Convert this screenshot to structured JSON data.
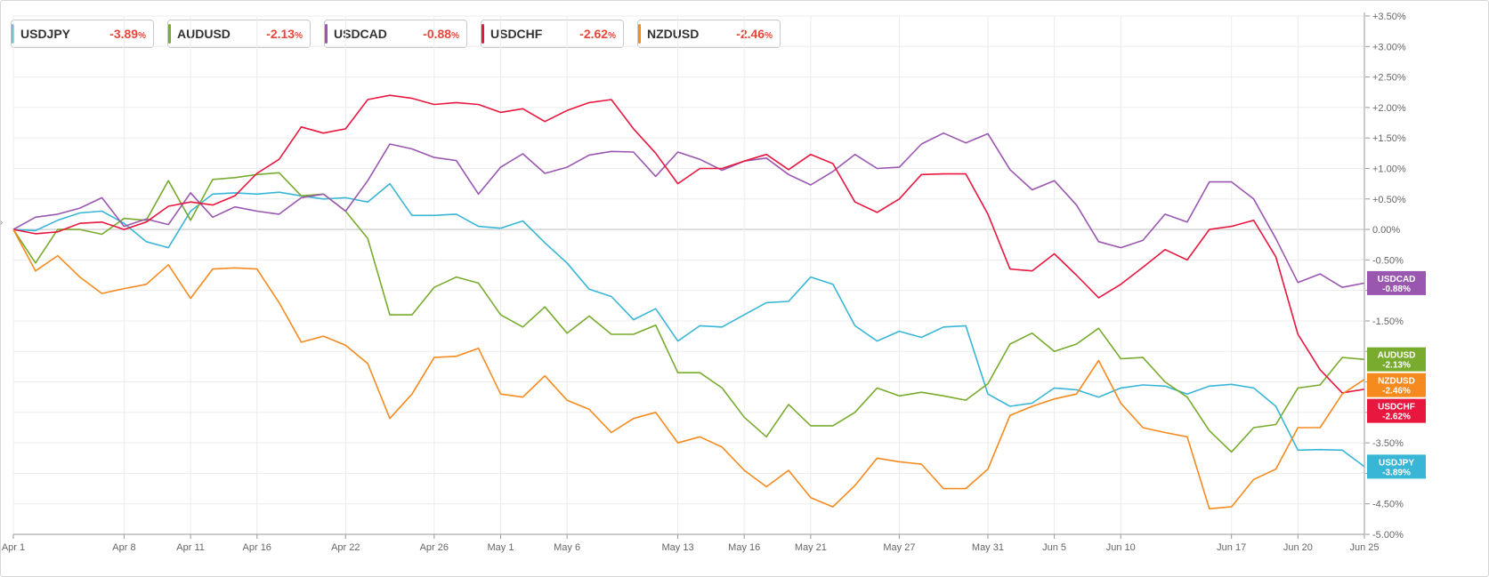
{
  "chart_data": {
    "type": "line",
    "x": [
      "Apr 1",
      "Apr 2",
      "Apr 3",
      "Apr 4",
      "Apr 5",
      "Apr 8",
      "Apr 9",
      "Apr 10",
      "Apr 11",
      "Apr 12",
      "Apr 15",
      "Apr 16",
      "Apr 17",
      "Apr 18",
      "Apr 19",
      "Apr 22",
      "Apr 23",
      "Apr 24",
      "Apr 25",
      "Apr 26",
      "Apr 29",
      "Apr 30",
      "May 1",
      "May 2",
      "May 3",
      "May 6",
      "May 7",
      "May 8",
      "May 9",
      "May 10",
      "May 13",
      "May 14",
      "May 15",
      "May 16",
      "May 17",
      "May 20",
      "May 21",
      "May 22",
      "May 23",
      "May 24",
      "May 27",
      "May 28",
      "May 29",
      "May 30",
      "May 31",
      "Jun 3",
      "Jun 4",
      "Jun 5",
      "Jun 6",
      "Jun 7",
      "Jun 10",
      "Jun 11",
      "Jun 12",
      "Jun 13",
      "Jun 14",
      "Jun 17",
      "Jun 18",
      "Jun 19",
      "Jun 20",
      "Jun 21",
      "Jun 24",
      "Jun 25"
    ],
    "x_tick_labels": [
      "Apr 1",
      "Apr 8",
      "Apr 11",
      "Apr 16",
      "Apr 22",
      "Apr 26",
      "May 1",
      "May 6",
      "May 13",
      "May 16",
      "May 21",
      "May 27",
      "May 31",
      "Jun 5",
      "Jun 10",
      "Jun 17",
      "Jun 20",
      "Jun 25"
    ],
    "x_tick_positions": [
      0,
      5,
      8,
      11,
      15,
      19,
      22,
      25,
      30,
      33,
      36,
      40,
      44,
      47,
      50,
      55,
      58,
      61
    ],
    "y_ticks": [
      "+3.50%",
      "+3.00%",
      "+2.50%",
      "+2.00%",
      "+1.50%",
      "+1.00%",
      "+0.50%",
      "0.00%",
      "-0.50%",
      "-1.00%",
      "-1.50%",
      "-2.00%",
      "-2.50%",
      "-3.00%",
      "-3.50%",
      "-4.00%",
      "-4.50%",
      "-5.00%"
    ],
    "ylim": [
      -5.0,
      3.5
    ],
    "y_unit": "%",
    "grid": true,
    "legend_position": "top-left",
    "series": [
      {
        "name": "USDJPY",
        "change": "-3.89",
        "color": "#39b6d6",
        "end_label": [
          "USDJPY",
          "-3.89%"
        ],
        "values": [
          0.0,
          -0.02,
          0.15,
          0.27,
          0.3,
          0.1,
          -0.2,
          -0.3,
          0.3,
          0.58,
          0.6,
          0.58,
          0.61,
          0.55,
          0.5,
          0.52,
          0.45,
          0.75,
          0.23,
          0.23,
          0.25,
          0.05,
          0.02,
          0.14,
          -0.22,
          -0.55,
          -0.98,
          -1.1,
          -1.48,
          -1.3,
          -1.83,
          -1.58,
          -1.6,
          -1.4,
          -1.2,
          -1.18,
          -0.78,
          -0.9,
          -1.58,
          -1.83,
          -1.67,
          -1.77,
          -1.6,
          -1.58,
          -2.7,
          -2.9,
          -2.85,
          -2.6,
          -2.63,
          -2.75,
          -2.6,
          -2.55,
          -2.57,
          -2.7,
          -2.57,
          -2.54,
          -2.6,
          -2.9,
          -3.62,
          -3.61,
          -3.62,
          -3.89
        ]
      },
      {
        "name": "AUDUSD",
        "change": "-2.13",
        "color": "#78ab2e",
        "end_label": [
          "AUDUSD",
          "-2.13%"
        ],
        "values": [
          0.0,
          -0.55,
          0.0,
          0.0,
          -0.08,
          0.18,
          0.15,
          0.8,
          0.15,
          0.82,
          0.85,
          0.9,
          0.93,
          0.55,
          0.58,
          0.3,
          -0.15,
          -1.4,
          -1.4,
          -0.95,
          -0.78,
          -0.88,
          -1.4,
          -1.6,
          -1.27,
          -1.7,
          -1.42,
          -1.72,
          -1.72,
          -1.57,
          -2.35,
          -2.35,
          -2.6,
          -3.08,
          -3.4,
          -2.87,
          -3.22,
          -3.22,
          -3.0,
          -2.6,
          -2.73,
          -2.67,
          -2.73,
          -2.8,
          -2.53,
          -1.88,
          -1.7,
          -2.0,
          -1.88,
          -1.62,
          -2.12,
          -2.1,
          -2.5,
          -2.75,
          -3.3,
          -3.65,
          -3.25,
          -3.2,
          -2.6,
          -2.55,
          -2.1,
          -2.13
        ]
      },
      {
        "name": "USDCAD",
        "change": "-0.88",
        "color": "#9a57b0",
        "end_label": [
          "USDCAD",
          "-0.88%"
        ],
        "values": [
          0.0,
          0.2,
          0.25,
          0.35,
          0.52,
          0.05,
          0.17,
          0.08,
          0.6,
          0.2,
          0.37,
          0.3,
          0.25,
          0.52,
          0.58,
          0.3,
          0.8,
          1.4,
          1.32,
          1.18,
          1.13,
          0.58,
          1.02,
          1.24,
          0.92,
          1.02,
          1.22,
          1.28,
          1.27,
          0.87,
          1.27,
          1.15,
          0.97,
          1.12,
          1.17,
          0.9,
          0.73,
          0.95,
          1.23,
          1.0,
          1.02,
          1.4,
          1.58,
          1.42,
          1.57,
          0.98,
          0.65,
          0.8,
          0.4,
          -0.2,
          -0.3,
          -0.18,
          0.25,
          0.12,
          0.78,
          0.78,
          0.5,
          -0.15,
          -0.87,
          -0.73,
          -0.95,
          -0.88
        ]
      },
      {
        "name": "USDCHF",
        "change": "-2.62",
        "color": "#e8173f",
        "end_label": [
          "USDCHF",
          "-2.62%"
        ],
        "values": [
          0.0,
          -0.07,
          -0.04,
          0.1,
          0.12,
          0.0,
          0.12,
          0.38,
          0.45,
          0.4,
          0.55,
          0.92,
          1.15,
          1.68,
          1.58,
          1.65,
          2.13,
          2.2,
          2.15,
          2.05,
          2.08,
          2.05,
          1.92,
          1.98,
          1.77,
          1.95,
          2.08,
          2.13,
          1.65,
          1.25,
          0.75,
          1.0,
          1.0,
          1.12,
          1.23,
          0.98,
          1.23,
          1.08,
          0.45,
          0.28,
          0.5,
          0.9,
          0.91,
          0.91,
          0.25,
          -0.65,
          -0.68,
          -0.4,
          -0.75,
          -1.12,
          -0.9,
          -0.62,
          -0.33,
          -0.5,
          0.0,
          0.05,
          0.15,
          -0.45,
          -1.72,
          -2.3,
          -2.68,
          -2.62
        ]
      },
      {
        "name": "NZDUSD",
        "change": "-2.46",
        "color": "#f58a1f",
        "end_label": [
          "NZDUSD",
          "-2.46%"
        ],
        "values": [
          0.0,
          -0.68,
          -0.43,
          -0.78,
          -1.05,
          -0.97,
          -0.9,
          -0.58,
          -1.13,
          -0.65,
          -0.63,
          -0.65,
          -1.2,
          -1.85,
          -1.75,
          -1.9,
          -2.2,
          -3.1,
          -2.7,
          -2.1,
          -2.08,
          -1.95,
          -2.7,
          -2.75,
          -2.4,
          -2.8,
          -2.95,
          -3.33,
          -3.1,
          -3.0,
          -3.5,
          -3.4,
          -3.57,
          -3.95,
          -4.22,
          -3.95,
          -4.4,
          -4.55,
          -4.2,
          -3.75,
          -3.81,
          -3.85,
          -4.25,
          -4.25,
          -3.93,
          -3.05,
          -2.9,
          -2.78,
          -2.7,
          -2.15,
          -2.85,
          -3.25,
          -3.33,
          -3.4,
          -4.58,
          -4.55,
          -4.1,
          -3.93,
          -3.25,
          -3.25,
          -2.7,
          -2.46
        ]
      }
    ]
  }
}
